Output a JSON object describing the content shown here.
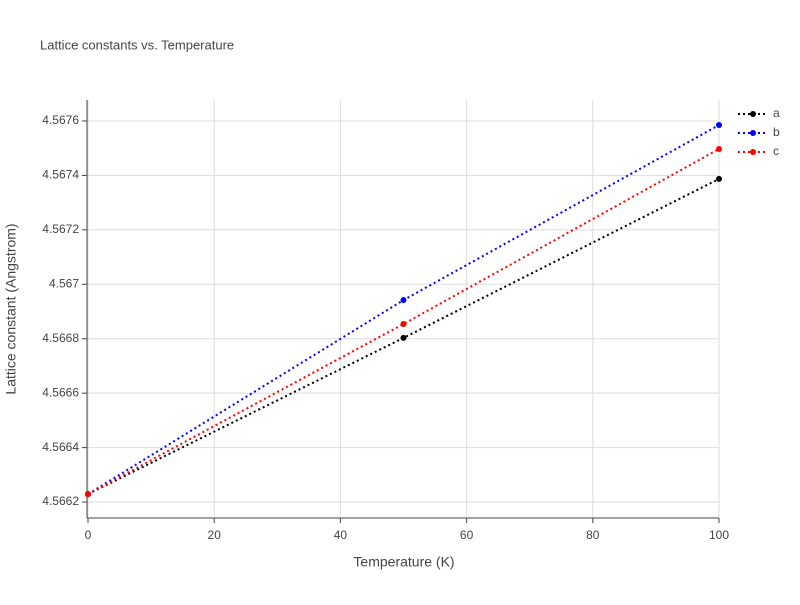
{
  "chart_data": {
    "type": "line",
    "title": "Lattice constants vs. Temperature",
    "x_label": "Temperature (K)",
    "y_label": "Lattice constant (Angstrom)",
    "x": [
      0,
      50,
      100
    ],
    "series": [
      {
        "name": "a",
        "color": "#000000",
        "values": [
          4.566229,
          4.566803,
          4.567387
        ]
      },
      {
        "name": "b",
        "color": "#0000ff",
        "values": [
          4.566229,
          4.566942,
          4.567585
        ]
      },
      {
        "name": "c",
        "color": "#ff0000",
        "values": [
          4.566229,
          4.566854,
          4.567497
        ]
      }
    ],
    "xlim": [
      0,
      100
    ],
    "xticks": [
      0,
      20,
      40,
      60,
      80,
      100
    ],
    "ylim": [
      4.566145,
      4.567677
    ],
    "yticks": [
      4.5662,
      4.5664,
      4.5666,
      4.5668,
      4.567,
      4.5672,
      4.5674,
      4.5676
    ],
    "grid": true
  }
}
